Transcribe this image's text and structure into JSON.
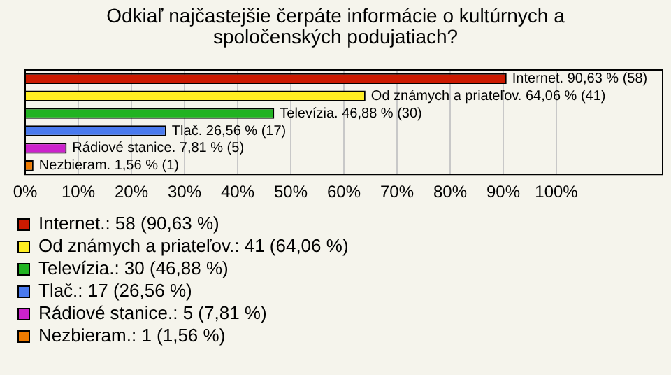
{
  "chart_data": {
    "type": "bar",
    "orientation": "horizontal",
    "title": "Odkiaľ najčastejšie čerpáte informácie o kultúrnych a spoločenských podujatiach?",
    "categories": [
      null,
      null,
      null,
      null,
      null,
      null
    ],
    "series": [
      {
        "name": "Internet.: 58 (90,63 %)",
        "color": "#cc1a00",
        "values": [
          90.63,
          null,
          null,
          null,
          null,
          null
        ],
        "value_labels": [
          "Internet. 90,63 % (58)",
          null,
          null,
          null,
          null,
          null
        ]
      },
      {
        "name": "Od známych a priateľov.: 41 (64,06 %)",
        "color": "#ffee22",
        "values": [
          null,
          64.06,
          null,
          null,
          null,
          null
        ],
        "value_labels": [
          null,
          "Od známych a priateľov. 64,06 % (41)",
          null,
          null,
          null,
          null
        ]
      },
      {
        "name": "Televízia.: 30 (46,88 %)",
        "color": "#22b322",
        "values": [
          null,
          null,
          46.88,
          null,
          null,
          null
        ],
        "value_labels": [
          null,
          null,
          "Televízia. 46,88 % (30)",
          null,
          null,
          null
        ]
      },
      {
        "name": "Tlač.: 17 (26,56 %)",
        "color": "#4a7aee",
        "values": [
          null,
          null,
          null,
          26.56,
          null,
          null
        ],
        "value_labels": [
          null,
          null,
          null,
          "Tlač. 26,56 % (17)",
          null,
          null
        ]
      },
      {
        "name": "Rádiové stanice.: 5 (7,81 %)",
        "color": "#cc22cc",
        "values": [
          null,
          null,
          null,
          null,
          7.81,
          null
        ],
        "value_labels": [
          null,
          null,
          null,
          null,
          "Rádiové stanice. 7,81 % (5)",
          null
        ]
      },
      {
        "name": "Nezbieram.: 1 (1,56 %)",
        "color": "#ee7a00",
        "values": [
          null,
          null,
          null,
          null,
          null,
          1.56
        ],
        "value_labels": [
          null,
          null,
          null,
          null,
          null,
          "Nezbieram. 1,56 % (1)"
        ]
      }
    ],
    "xlim": [
      0,
      120
    ],
    "xticks": [
      {
        "value": 0,
        "label": "0%"
      },
      {
        "value": 10,
        "label": "10%"
      },
      {
        "value": 20,
        "label": "20%"
      },
      {
        "value": 30,
        "label": "30%"
      },
      {
        "value": 40,
        "label": "40%"
      },
      {
        "value": 50,
        "label": "50%"
      },
      {
        "value": 60,
        "label": "60%"
      },
      {
        "value": 70,
        "label": "70%"
      },
      {
        "value": 80,
        "label": "80%"
      },
      {
        "value": 90,
        "label": "90%"
      },
      {
        "value": 100,
        "label": "100%"
      }
    ],
    "grid": "x",
    "legend": "bottom",
    "tick_labels": "x"
  }
}
